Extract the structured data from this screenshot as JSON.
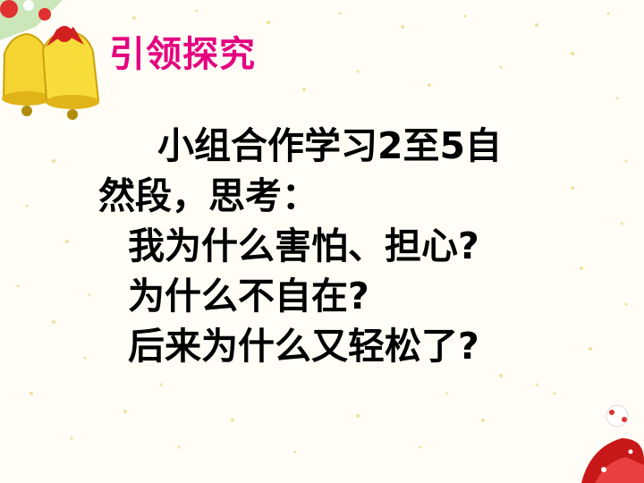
{
  "slide": {
    "title": "引领探究",
    "intro_line1": "小组合作学习2至5自",
    "intro_line2": "然段，思考：",
    "questions": [
      "我为什么害怕、担心?",
      "为什么不自在?",
      "后来为什么又轻松了?"
    ]
  },
  "decor": {
    "bells_icon": "christmas-bells-icon",
    "corner_icon": "christmas-ornament-icon",
    "dot_color": "#f2e39a",
    "title_color": "#e4007f"
  }
}
